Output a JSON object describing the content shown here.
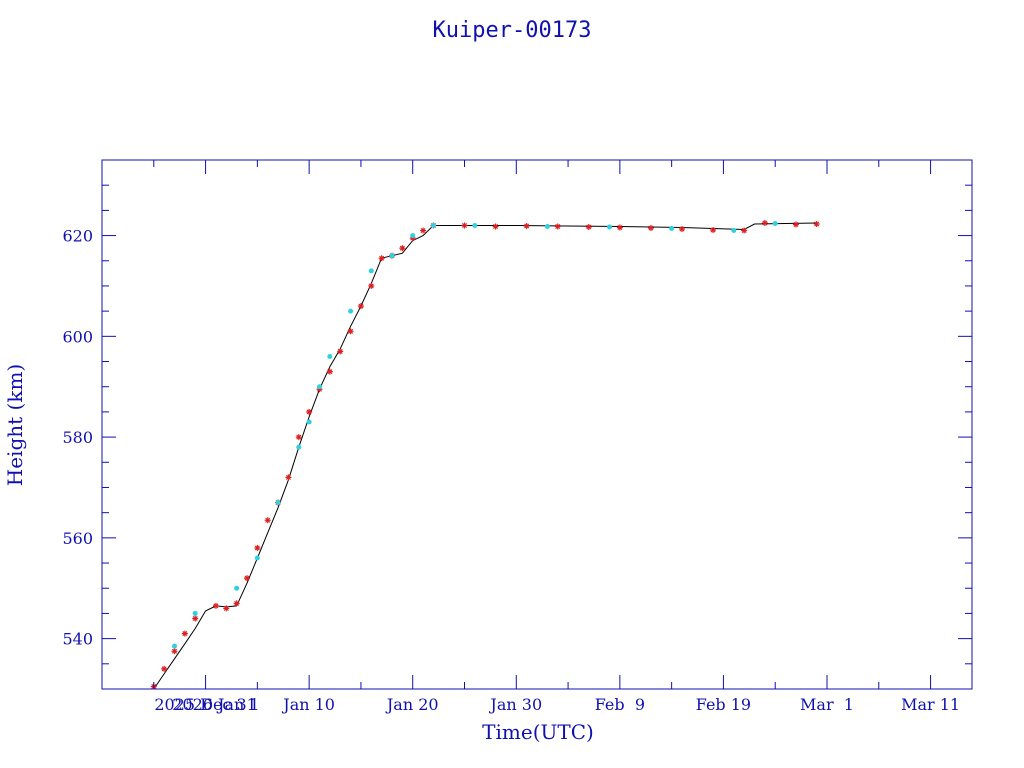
{
  "chart_data": {
    "type": "scatter",
    "title": "Kuiper-00173",
    "xlabel": "Time(UTC)",
    "ylabel": "Height (km)",
    "x_axis": {
      "type": "date",
      "range": [
        "2025-12-21",
        "2026-03-15"
      ],
      "tick_labels": [
        {
          "date": "2025-12-31",
          "label": "2025 Dec 31"
        },
        {
          "date": "2026-01-01",
          "label": "2026 Jan 1"
        },
        {
          "date": "2026-01-10",
          "label": "Jan 10"
        },
        {
          "date": "2026-01-20",
          "label": "Jan 20"
        },
        {
          "date": "2026-01-30",
          "label": "Jan 30"
        },
        {
          "date": "2026-02-09",
          "label": "Feb  9"
        },
        {
          "date": "2026-02-19",
          "label": "Feb 19"
        },
        {
          "date": "2026-03-01",
          "label": "Mar  1"
        },
        {
          "date": "2026-03-11",
          "label": "Mar 11"
        }
      ]
    },
    "y_axis": {
      "range": [
        530,
        635
      ],
      "major_ticks": [
        540,
        560,
        580,
        600,
        620
      ],
      "minor_step": 5
    },
    "grid": false,
    "series": [
      {
        "color": "#000000",
        "marker": "line",
        "points": [
          [
            "2025-12-26",
            530
          ],
          [
            "2025-12-27",
            533
          ],
          [
            "2025-12-28",
            536
          ],
          [
            "2025-12-29",
            539
          ],
          [
            "2025-12-30",
            542
          ],
          [
            "2025-12-31",
            545.5
          ],
          [
            "2026-01-01",
            546.5
          ],
          [
            "2026-01-02",
            546.3
          ],
          [
            "2026-01-03",
            546.5
          ],
          [
            "2026-01-04",
            551
          ],
          [
            "2026-01-05",
            556
          ],
          [
            "2026-01-06",
            561
          ],
          [
            "2026-01-07",
            566
          ],
          [
            "2026-01-08",
            571.5
          ],
          [
            "2026-01-09",
            578
          ],
          [
            "2026-01-10",
            584
          ],
          [
            "2026-01-11",
            589.5
          ],
          [
            "2026-01-12",
            594
          ],
          [
            "2026-01-13",
            597.5
          ],
          [
            "2026-01-14",
            602
          ],
          [
            "2026-01-15",
            606
          ],
          [
            "2026-01-16",
            610.5
          ],
          [
            "2026-01-17",
            615.5
          ],
          [
            "2026-01-18",
            616
          ],
          [
            "2026-01-19",
            616.5
          ],
          [
            "2026-01-20",
            619
          ],
          [
            "2026-01-21",
            620
          ],
          [
            "2026-01-22",
            622
          ],
          [
            "2026-01-30",
            622
          ],
          [
            "2026-02-09",
            621.8
          ],
          [
            "2026-02-15",
            621.6
          ],
          [
            "2026-02-21",
            621.2
          ],
          [
            "2026-02-22",
            622.3
          ],
          [
            "2026-02-28",
            622.5
          ]
        ]
      },
      {
        "color": "#dd2020",
        "marker": "star",
        "points": [
          [
            "2025-12-26",
            530.5
          ],
          [
            "2025-12-27",
            534
          ],
          [
            "2025-12-28",
            537.5
          ],
          [
            "2025-12-29",
            541
          ],
          [
            "2025-12-30",
            544
          ],
          [
            "2026-01-01",
            546.5
          ],
          [
            "2026-01-02",
            546
          ],
          [
            "2026-01-03",
            547
          ],
          [
            "2026-01-04",
            552
          ],
          [
            "2026-01-05",
            558
          ],
          [
            "2026-01-06",
            563.5
          ],
          [
            "2026-01-07",
            567
          ],
          [
            "2026-01-08",
            572
          ],
          [
            "2026-01-09",
            580
          ],
          [
            "2026-01-10",
            585
          ],
          [
            "2026-01-11",
            589.5
          ],
          [
            "2026-01-12",
            593
          ],
          [
            "2026-01-13",
            597
          ],
          [
            "2026-01-14",
            601
          ],
          [
            "2026-01-15",
            606
          ],
          [
            "2026-01-16",
            610
          ],
          [
            "2026-01-17",
            615.5
          ],
          [
            "2026-01-18",
            616
          ],
          [
            "2026-01-19",
            617.5
          ],
          [
            "2026-01-20",
            619.5
          ],
          [
            "2026-01-21",
            621
          ],
          [
            "2026-01-22",
            622
          ],
          [
            "2026-01-25",
            622
          ],
          [
            "2026-01-28",
            621.8
          ],
          [
            "2026-01-31",
            621.9
          ],
          [
            "2026-02-03",
            621.8
          ],
          [
            "2026-02-06",
            621.7
          ],
          [
            "2026-02-09",
            621.6
          ],
          [
            "2026-02-12",
            621.5
          ],
          [
            "2026-02-15",
            621.3
          ],
          [
            "2026-02-18",
            621.1
          ],
          [
            "2026-02-21",
            621
          ],
          [
            "2026-02-23",
            622.5
          ],
          [
            "2026-02-26",
            622.2
          ],
          [
            "2026-02-28",
            622.3
          ]
        ]
      },
      {
        "color": "#30d0e0",
        "marker": "dot",
        "points": [
          [
            "2025-12-28",
            538.5
          ],
          [
            "2025-12-30",
            545
          ],
          [
            "2026-01-03",
            550
          ],
          [
            "2026-01-05",
            556
          ],
          [
            "2026-01-07",
            567
          ],
          [
            "2026-01-09",
            578
          ],
          [
            "2026-01-10",
            583
          ],
          [
            "2026-01-11",
            590
          ],
          [
            "2026-01-12",
            596
          ],
          [
            "2026-01-14",
            605
          ],
          [
            "2026-01-16",
            613
          ],
          [
            "2026-01-18",
            616
          ],
          [
            "2026-01-20",
            620
          ],
          [
            "2026-01-22",
            622
          ],
          [
            "2026-01-26",
            622
          ],
          [
            "2026-02-02",
            621.8
          ],
          [
            "2026-02-08",
            621.7
          ],
          [
            "2026-02-14",
            621.4
          ],
          [
            "2026-02-20",
            621
          ],
          [
            "2026-02-24",
            622.4
          ]
        ]
      }
    ]
  }
}
